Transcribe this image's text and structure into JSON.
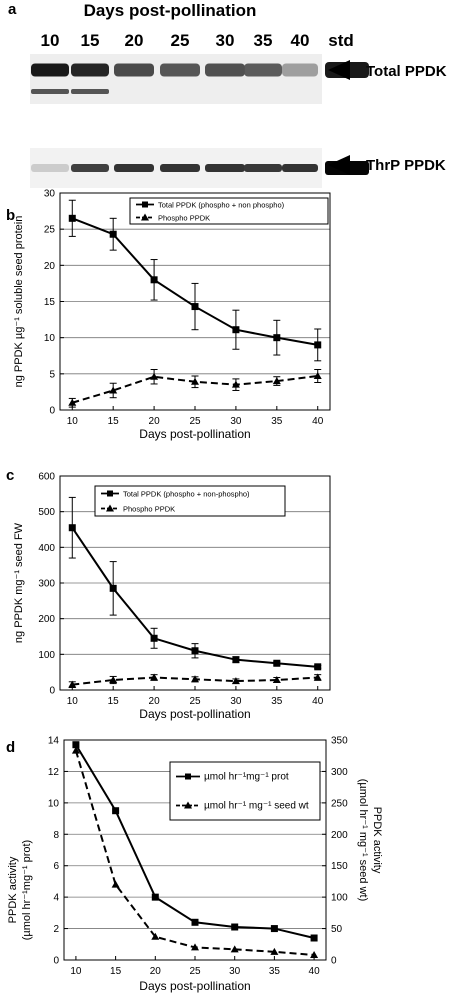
{
  "panel_a": {
    "label": "a",
    "title": "Days post-pollination",
    "lanes": [
      "10",
      "15",
      "20",
      "25",
      "30",
      "35",
      "40",
      "std"
    ],
    "blot_labels": [
      "Total PPDK",
      "ThrP PPDK"
    ],
    "total_intensity": [
      0.95,
      0.9,
      0.75,
      0.7,
      0.72,
      0.68,
      0.4,
      0.95
    ],
    "thrp_intensity": [
      0.2,
      0.75,
      0.8,
      0.8,
      0.8,
      0.78,
      0.8,
      0.98
    ]
  },
  "chart_data": [
    {
      "panel": "b",
      "type": "line",
      "xlabel": "Days post-pollination",
      "ylabel": "ng PPDK µg⁻¹ soluble seed protein",
      "x": [
        10,
        15,
        20,
        25,
        30,
        35,
        40
      ],
      "xlim": [
        8.5,
        41.5
      ],
      "ylim": [
        0,
        30
      ],
      "xticks": [
        10,
        15,
        20,
        25,
        30,
        35,
        40
      ],
      "yticks": [
        0,
        5,
        10,
        15,
        20,
        25,
        30
      ],
      "grid": "horizontal",
      "legend": "top-right",
      "series": [
        {
          "name": "Total PPDK (phospho + non phospho)",
          "marker": "square",
          "dash": false,
          "values": [
            26.5,
            24.3,
            18,
            14.3,
            11.1,
            10,
            9
          ],
          "errors": [
            2.5,
            2.2,
            2.8,
            3.2,
            2.7,
            2.4,
            2.2
          ]
        },
        {
          "name": "Phospho PPDK",
          "marker": "triangle",
          "dash": true,
          "values": [
            1,
            2.7,
            4.6,
            3.9,
            3.5,
            4,
            4.7
          ],
          "errors": [
            0.6,
            1.0,
            1.0,
            0.8,
            0.8,
            0.6,
            0.9
          ]
        }
      ]
    },
    {
      "panel": "c",
      "type": "line",
      "xlabel": "Days post-pollination",
      "ylabel": "ng PPDK mg⁻¹ seed FW",
      "x": [
        10,
        15,
        20,
        25,
        30,
        35,
        40
      ],
      "xlim": [
        8.5,
        41.5
      ],
      "ylim": [
        0,
        600
      ],
      "xticks": [
        10,
        15,
        20,
        25,
        30,
        35,
        40
      ],
      "yticks": [
        0,
        100,
        200,
        300,
        400,
        500,
        600
      ],
      "grid": "horizontal",
      "legend": "top-right",
      "series": [
        {
          "name": "Total PPDK (phospho + non-phospho)",
          "marker": "square",
          "dash": false,
          "values": [
            455,
            285,
            145,
            110,
            85,
            75,
            65
          ],
          "errors": [
            85,
            75,
            28,
            20,
            8,
            5,
            4
          ]
        },
        {
          "name": "Phospho PPDK",
          "marker": "triangle",
          "dash": true,
          "values": [
            15,
            28,
            35,
            30,
            25,
            28,
            35
          ],
          "errors": [
            8,
            10,
            8,
            7,
            6,
            7,
            8
          ]
        }
      ]
    },
    {
      "panel": "d",
      "type": "line",
      "xlabel": "Days post-pollination",
      "ylabel": "PPDK activity (µmol hr⁻¹mg⁻¹ prot)",
      "ylabel2": "PPDK activity (µmol hr⁻¹ mg⁻¹ seed wt)",
      "x": [
        10,
        15,
        20,
        25,
        30,
        35,
        40
      ],
      "xlim": [
        8.5,
        41.5
      ],
      "ylim": [
        0,
        14
      ],
      "ylim2": [
        0,
        350
      ],
      "xticks": [
        10,
        15,
        20,
        25,
        30,
        35,
        40
      ],
      "yticks": [
        0,
        2,
        4,
        6,
        8,
        10,
        12,
        14
      ],
      "yticks2": [
        0,
        50,
        100,
        150,
        200,
        250,
        300,
        350
      ],
      "grid": "horizontal",
      "legend": "top-right",
      "series": [
        {
          "name": "µmol hr⁻¹mg⁻¹ prot",
          "marker": "square",
          "dash": false,
          "axis": "left",
          "values": [
            13.7,
            9.5,
            4,
            2.4,
            2.1,
            2,
            1.4
          ]
        },
        {
          "name": "µmol hr⁻¹ mg⁻¹ seed wt",
          "marker": "triangle",
          "dash": true,
          "axis": "right",
          "values": [
            333,
            120,
            37,
            20,
            17,
            13,
            8
          ]
        }
      ]
    }
  ]
}
